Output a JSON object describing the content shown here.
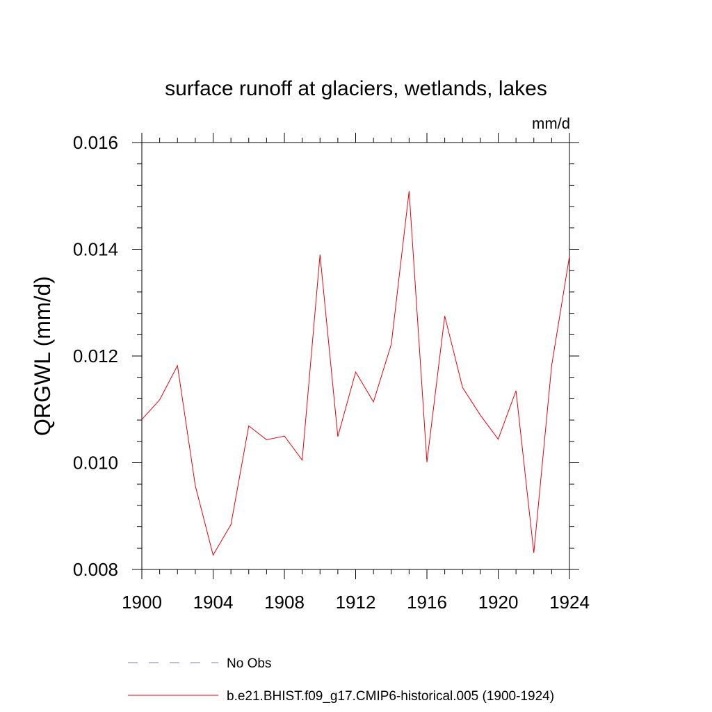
{
  "chart_data": {
    "type": "line",
    "title": "surface runoff at glaciers, wetlands, lakes",
    "units_label": "mm/d",
    "ylabel": "QRGWL  (mm/d)",
    "xlabel": "",
    "xlim": [
      1900,
      1924
    ],
    "ylim": [
      0.008,
      0.016
    ],
    "x_ticks": [
      "1900",
      "1904",
      "1908",
      "1912",
      "1916",
      "1920",
      "1924"
    ],
    "y_ticks": [
      "0.008",
      "0.010",
      "0.012",
      "0.014",
      "0.016"
    ],
    "grid": false,
    "legend_position": "bottom",
    "series": [
      {
        "name": "No Obs",
        "color": "#7b7bc8",
        "dash": "dashed",
        "x": [],
        "values": []
      },
      {
        "name": "b.e21.BHIST.f09_g17.CMIP6-historical.005 (1900-1924)",
        "color": "#e8000b",
        "dash": "solid",
        "x": [
          1900,
          1901,
          1902,
          1903,
          1904,
          1905,
          1906,
          1907,
          1908,
          1909,
          1910,
          1911,
          1912,
          1913,
          1914,
          1915,
          1916,
          1917,
          1918,
          1919,
          1920,
          1921,
          1922,
          1923,
          1924
        ],
        "values": [
          0.01081,
          0.01118,
          0.01182,
          0.00957,
          0.00827,
          0.00884,
          0.01069,
          0.01043,
          0.0105,
          0.01005,
          0.0139,
          0.01049,
          0.0117,
          0.01114,
          0.01222,
          0.01509,
          0.01001,
          0.01275,
          0.01141,
          0.01089,
          0.01044,
          0.01135,
          0.00831,
          0.01182,
          0.01387
        ]
      }
    ]
  }
}
